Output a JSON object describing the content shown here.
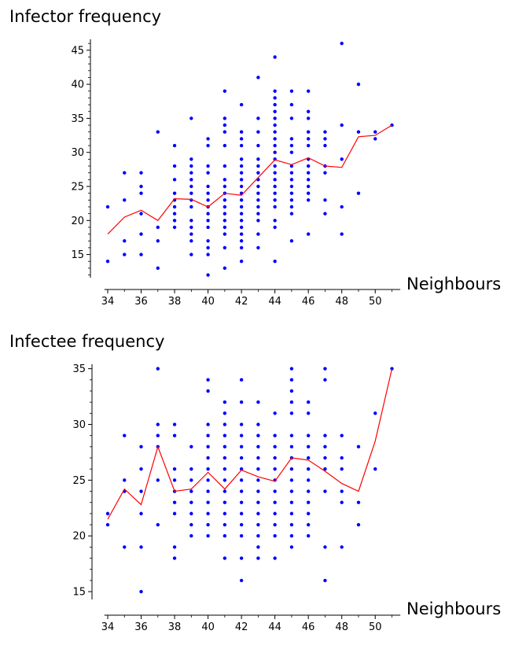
{
  "chart_data": [
    {
      "type": "scatter",
      "title": "Infector frequency",
      "xlabel": "Neighbours",
      "ylabel": "",
      "xlim": [
        33.8,
        51.5
      ],
      "ylim": [
        11.6,
        46.6
      ],
      "xticks": [
        34,
        36,
        38,
        40,
        42,
        44,
        46,
        48,
        50
      ],
      "yticks": [
        15,
        20,
        25,
        30,
        35,
        40,
        45
      ],
      "grid": false,
      "points_color": "#0000ff",
      "line_color": "#ff0000",
      "points": [
        [
          34,
          22
        ],
        [
          34,
          14
        ],
        [
          35,
          27
        ],
        [
          35,
          23
        ],
        [
          35,
          17
        ],
        [
          35,
          15
        ],
        [
          36,
          27
        ],
        [
          36,
          25
        ],
        [
          36,
          24
        ],
        [
          36,
          21
        ],
        [
          36,
          18
        ],
        [
          36,
          15
        ],
        [
          37,
          33
        ],
        [
          37,
          19
        ],
        [
          37,
          17
        ],
        [
          37,
          13
        ],
        [
          38,
          31
        ],
        [
          38,
          28
        ],
        [
          38,
          26
        ],
        [
          38,
          24
        ],
        [
          38,
          23
        ],
        [
          38,
          22
        ],
        [
          38,
          21
        ],
        [
          38,
          20
        ],
        [
          38,
          19
        ],
        [
          39,
          35
        ],
        [
          39,
          29
        ],
        [
          39,
          28
        ],
        [
          39,
          27
        ],
        [
          39,
          26
        ],
        [
          39,
          25
        ],
        [
          39,
          24
        ],
        [
          39,
          23
        ],
        [
          39,
          22
        ],
        [
          39,
          20
        ],
        [
          39,
          19
        ],
        [
          39,
          18
        ],
        [
          39,
          17
        ],
        [
          39,
          15
        ],
        [
          40,
          32
        ],
        [
          40,
          31
        ],
        [
          40,
          28
        ],
        [
          40,
          27
        ],
        [
          40,
          25
        ],
        [
          40,
          24
        ],
        [
          40,
          23
        ],
        [
          40,
          22
        ],
        [
          40,
          21
        ],
        [
          40,
          20
        ],
        [
          40,
          19
        ],
        [
          40,
          17
        ],
        [
          40,
          16
        ],
        [
          40,
          15
        ],
        [
          40,
          12
        ],
        [
          41,
          39
        ],
        [
          41,
          35
        ],
        [
          41,
          34
        ],
        [
          41,
          33
        ],
        [
          41,
          31
        ],
        [
          41,
          28
        ],
        [
          41,
          26
        ],
        [
          41,
          25
        ],
        [
          41,
          24
        ],
        [
          41,
          23
        ],
        [
          41,
          22
        ],
        [
          41,
          21
        ],
        [
          41,
          20
        ],
        [
          41,
          19
        ],
        [
          41,
          18
        ],
        [
          41,
          16
        ],
        [
          41,
          13
        ],
        [
          42,
          37
        ],
        [
          42,
          33
        ],
        [
          42,
          32
        ],
        [
          42,
          31
        ],
        [
          42,
          29
        ],
        [
          42,
          28
        ],
        [
          42,
          27
        ],
        [
          42,
          26
        ],
        [
          42,
          25
        ],
        [
          42,
          24
        ],
        [
          42,
          23
        ],
        [
          42,
          22
        ],
        [
          42,
          21
        ],
        [
          42,
          20
        ],
        [
          42,
          19
        ],
        [
          42,
          18
        ],
        [
          42,
          17
        ],
        [
          42,
          16
        ],
        [
          42,
          14
        ],
        [
          43,
          41
        ],
        [
          43,
          35
        ],
        [
          43,
          33
        ],
        [
          43,
          31
        ],
        [
          43,
          29
        ],
        [
          43,
          28
        ],
        [
          43,
          27
        ],
        [
          43,
          26
        ],
        [
          43,
          25
        ],
        [
          43,
          24
        ],
        [
          43,
          23
        ],
        [
          43,
          22
        ],
        [
          43,
          21
        ],
        [
          43,
          20
        ],
        [
          43,
          18
        ],
        [
          43,
          16
        ],
        [
          44,
          44
        ],
        [
          44,
          39
        ],
        [
          44,
          38
        ],
        [
          44,
          37
        ],
        [
          44,
          36
        ],
        [
          44,
          35
        ],
        [
          44,
          34
        ],
        [
          44,
          33
        ],
        [
          44,
          32
        ],
        [
          44,
          31
        ],
        [
          44,
          30
        ],
        [
          44,
          29
        ],
        [
          44,
          28
        ],
        [
          44,
          27
        ],
        [
          44,
          26
        ],
        [
          44,
          25
        ],
        [
          44,
          24
        ],
        [
          44,
          23
        ],
        [
          44,
          22
        ],
        [
          44,
          20
        ],
        [
          44,
          19
        ],
        [
          44,
          14
        ],
        [
          45,
          39
        ],
        [
          45,
          37
        ],
        [
          45,
          35
        ],
        [
          45,
          32
        ],
        [
          45,
          31
        ],
        [
          45,
          30
        ],
        [
          45,
          28
        ],
        [
          45,
          27
        ],
        [
          45,
          26
        ],
        [
          45,
          25
        ],
        [
          45,
          24
        ],
        [
          45,
          23
        ],
        [
          45,
          22
        ],
        [
          45,
          21
        ],
        [
          45,
          17
        ],
        [
          46,
          39
        ],
        [
          46,
          36
        ],
        [
          46,
          35
        ],
        [
          46,
          33
        ],
        [
          46,
          32
        ],
        [
          46,
          31
        ],
        [
          46,
          29
        ],
        [
          46,
          28
        ],
        [
          46,
          27
        ],
        [
          46,
          26
        ],
        [
          46,
          25
        ],
        [
          46,
          24
        ],
        [
          46,
          23
        ],
        [
          46,
          18
        ],
        [
          47,
          33
        ],
        [
          47,
          32
        ],
        [
          47,
          31
        ],
        [
          47,
          28
        ],
        [
          47,
          27
        ],
        [
          47,
          23
        ],
        [
          47,
          21
        ],
        [
          48,
          46
        ],
        [
          48,
          34
        ],
        [
          48,
          29
        ],
        [
          48,
          22
        ],
        [
          48,
          18
        ],
        [
          49,
          40
        ],
        [
          49,
          33
        ],
        [
          49,
          24
        ],
        [
          50,
          33
        ],
        [
          50,
          32
        ],
        [
          51,
          34
        ]
      ],
      "mean_line": {
        "x": [
          34,
          35,
          36,
          37,
          38,
          39,
          40,
          41,
          42,
          43,
          44,
          45,
          46,
          47,
          48,
          49,
          50,
          51
        ],
        "y": [
          18.0,
          20.5,
          21.5,
          20.0,
          23.2,
          23.1,
          22.0,
          24.0,
          23.7,
          26.3,
          28.9,
          28.2,
          29.2,
          28.0,
          27.8,
          32.3,
          32.5,
          34.0
        ]
      }
    },
    {
      "type": "scatter",
      "title": "Infectee frequency",
      "xlabel": "Neighbours",
      "ylabel": "",
      "xlim": [
        33.8,
        51.5
      ],
      "ylim": [
        14.3,
        35.4
      ],
      "xticks": [
        34,
        36,
        38,
        40,
        42,
        44,
        46,
        48,
        50
      ],
      "yticks": [
        15,
        20,
        25,
        30,
        35
      ],
      "grid": false,
      "points_color": "#0000ff",
      "line_color": "#ff0000",
      "points": [
        [
          34,
          22
        ],
        [
          34,
          21
        ],
        [
          35,
          29
        ],
        [
          35,
          25
        ],
        [
          35,
          24
        ],
        [
          35,
          19
        ],
        [
          36,
          28
        ],
        [
          36,
          26
        ],
        [
          36,
          24
        ],
        [
          36,
          22
        ],
        [
          36,
          19
        ],
        [
          36,
          15
        ],
        [
          37,
          35
        ],
        [
          37,
          30
        ],
        [
          37,
          29
        ],
        [
          37,
          28
        ],
        [
          37,
          25
        ],
        [
          37,
          21
        ],
        [
          38,
          30
        ],
        [
          38,
          29
        ],
        [
          38,
          26
        ],
        [
          38,
          25
        ],
        [
          38,
          24
        ],
        [
          38,
          23
        ],
        [
          38,
          22
        ],
        [
          38,
          19
        ],
        [
          38,
          18
        ],
        [
          39,
          28
        ],
        [
          39,
          26
        ],
        [
          39,
          25
        ],
        [
          39,
          24
        ],
        [
          39,
          23
        ],
        [
          39,
          22
        ],
        [
          39,
          21
        ],
        [
          39,
          20
        ],
        [
          40,
          34
        ],
        [
          40,
          33
        ],
        [
          40,
          30
        ],
        [
          40,
          29
        ],
        [
          40,
          28
        ],
        [
          40,
          27
        ],
        [
          40,
          26
        ],
        [
          40,
          25
        ],
        [
          40,
          24
        ],
        [
          40,
          23
        ],
        [
          40,
          22
        ],
        [
          40,
          21
        ],
        [
          40,
          20
        ],
        [
          41,
          32
        ],
        [
          41,
          31
        ],
        [
          41,
          30
        ],
        [
          41,
          29
        ],
        [
          41,
          28
        ],
        [
          41,
          27
        ],
        [
          41,
          26
        ],
        [
          41,
          25
        ],
        [
          41,
          24
        ],
        [
          41,
          23
        ],
        [
          41,
          22
        ],
        [
          41,
          21
        ],
        [
          41,
          20
        ],
        [
          41,
          18
        ],
        [
          42,
          34
        ],
        [
          42,
          32
        ],
        [
          42,
          30
        ],
        [
          42,
          29
        ],
        [
          42,
          28
        ],
        [
          42,
          27
        ],
        [
          42,
          26
        ],
        [
          42,
          25
        ],
        [
          42,
          24
        ],
        [
          42,
          23
        ],
        [
          42,
          22
        ],
        [
          42,
          21
        ],
        [
          42,
          20
        ],
        [
          42,
          18
        ],
        [
          42,
          16
        ],
        [
          43,
          32
        ],
        [
          43,
          30
        ],
        [
          43,
          29
        ],
        [
          43,
          28
        ],
        [
          43,
          27
        ],
        [
          43,
          26
        ],
        [
          43,
          25
        ],
        [
          43,
          24
        ],
        [
          43,
          23
        ],
        [
          43,
          22
        ],
        [
          43,
          21
        ],
        [
          43,
          20
        ],
        [
          43,
          19
        ],
        [
          43,
          18
        ],
        [
          44,
          31
        ],
        [
          44,
          29
        ],
        [
          44,
          28
        ],
        [
          44,
          27
        ],
        [
          44,
          26
        ],
        [
          44,
          25
        ],
        [
          44,
          24
        ],
        [
          44,
          23
        ],
        [
          44,
          22
        ],
        [
          44,
          21
        ],
        [
          44,
          20
        ],
        [
          44,
          18
        ],
        [
          45,
          35
        ],
        [
          45,
          34
        ],
        [
          45,
          33
        ],
        [
          45,
          32
        ],
        [
          45,
          31
        ],
        [
          45,
          29
        ],
        [
          45,
          28
        ],
        [
          45,
          27
        ],
        [
          45,
          26
        ],
        [
          45,
          25
        ],
        [
          45,
          24
        ],
        [
          45,
          23
        ],
        [
          45,
          22
        ],
        [
          45,
          21
        ],
        [
          45,
          20
        ],
        [
          45,
          19
        ],
        [
          46,
          32
        ],
        [
          46,
          31
        ],
        [
          46,
          29
        ],
        [
          46,
          28
        ],
        [
          46,
          27
        ],
        [
          46,
          26
        ],
        [
          46,
          25
        ],
        [
          46,
          24
        ],
        [
          46,
          23
        ],
        [
          46,
          22
        ],
        [
          46,
          21
        ],
        [
          46,
          20
        ],
        [
          47,
          35
        ],
        [
          47,
          34
        ],
        [
          47,
          29
        ],
        [
          47,
          28
        ],
        [
          47,
          27
        ],
        [
          47,
          26
        ],
        [
          47,
          24
        ],
        [
          47,
          19
        ],
        [
          47,
          16
        ],
        [
          48,
          29
        ],
        [
          48,
          27
        ],
        [
          48,
          26
        ],
        [
          48,
          24
        ],
        [
          48,
          23
        ],
        [
          48,
          19
        ],
        [
          49,
          28
        ],
        [
          49,
          23
        ],
        [
          49,
          21
        ],
        [
          50,
          31
        ],
        [
          50,
          26
        ],
        [
          51,
          35
        ]
      ],
      "mean_line": {
        "x": [
          34,
          35,
          36,
          37,
          38,
          39,
          40,
          41,
          42,
          43,
          44,
          45,
          46,
          47,
          48,
          49,
          50,
          51
        ],
        "y": [
          21.5,
          24.2,
          22.8,
          28.0,
          24.0,
          24.2,
          25.7,
          24.2,
          25.9,
          25.3,
          24.9,
          27.0,
          26.8,
          25.8,
          24.7,
          24.0,
          28.5,
          35.0
        ]
      }
    }
  ]
}
